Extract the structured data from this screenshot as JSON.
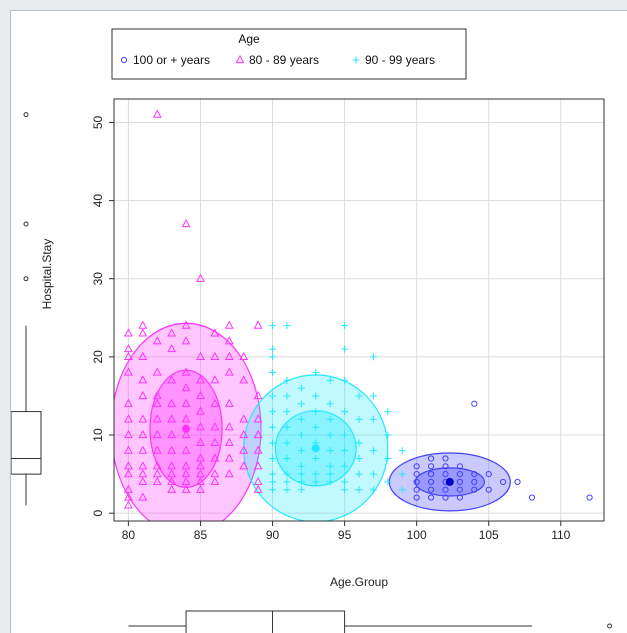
{
  "chart_data": {
    "type": "scatter",
    "xlabel": "Age.Group",
    "ylabel": "Hospital.Stay",
    "xlim": [
      79,
      113
    ],
    "ylim": [
      -1,
      53
    ],
    "x_ticks": [
      80,
      85,
      90,
      95,
      100,
      105,
      110
    ],
    "y_ticks": [
      0,
      10,
      20,
      30,
      40,
      50
    ],
    "grid": true,
    "legend": {
      "title": "Age",
      "position": "top",
      "entries": [
        {
          "label": "100 or + years",
          "symbol": "circle",
          "color": "#4040ff"
        },
        {
          "label": "80 - 89 years",
          "symbol": "triangle",
          "color": "#ff33ff"
        },
        {
          "label": "90 - 99 years",
          "symbol": "plus",
          "color": "#22e8ff"
        }
      ]
    },
    "series": [
      {
        "name": "80 - 89 years",
        "symbol": "triangle",
        "color": "#ff33ff",
        "centroid": [
          84,
          10.8
        ],
        "ellipse_inner": {
          "rx": 2.5,
          "ry": 7.5
        },
        "ellipse_outer": {
          "rx": 5.2,
          "ry": 13.5
        },
        "points": [
          [
            82,
            51
          ],
          [
            84,
            37
          ],
          [
            85,
            30
          ],
          [
            81,
            24
          ],
          [
            82,
            22
          ],
          [
            83,
            23
          ],
          [
            84,
            22
          ],
          [
            84,
            24
          ],
          [
            85,
            20
          ],
          [
            86,
            23
          ],
          [
            87,
            24
          ],
          [
            87,
            20
          ],
          [
            80,
            23
          ],
          [
            80,
            21
          ],
          [
            80,
            20
          ],
          [
            80,
            18
          ],
          [
            80,
            14
          ],
          [
            80,
            12
          ],
          [
            80,
            10
          ],
          [
            80,
            8
          ],
          [
            80,
            6
          ],
          [
            80,
            5
          ],
          [
            80,
            3
          ],
          [
            80,
            2
          ],
          [
            80,
            1
          ],
          [
            81,
            23
          ],
          [
            81,
            20
          ],
          [
            81,
            17
          ],
          [
            81,
            15
          ],
          [
            81,
            12
          ],
          [
            81,
            10
          ],
          [
            81,
            8
          ],
          [
            81,
            6
          ],
          [
            81,
            5
          ],
          [
            81,
            4
          ],
          [
            81,
            2
          ],
          [
            82,
            18
          ],
          [
            82,
            15
          ],
          [
            82,
            14
          ],
          [
            82,
            12
          ],
          [
            82,
            10
          ],
          [
            82,
            8
          ],
          [
            82,
            6
          ],
          [
            82,
            5
          ],
          [
            82,
            4
          ],
          [
            83,
            21
          ],
          [
            83,
            17
          ],
          [
            83,
            14
          ],
          [
            83,
            12
          ],
          [
            83,
            10
          ],
          [
            83,
            8
          ],
          [
            83,
            6
          ],
          [
            83,
            5
          ],
          [
            83,
            4
          ],
          [
            83,
            3
          ],
          [
            84,
            18
          ],
          [
            84,
            16
          ],
          [
            84,
            14
          ],
          [
            84,
            12
          ],
          [
            84,
            10
          ],
          [
            84,
            8
          ],
          [
            84,
            6
          ],
          [
            84,
            5
          ],
          [
            84,
            4
          ],
          [
            84,
            3
          ],
          [
            85,
            17
          ],
          [
            85,
            15
          ],
          [
            85,
            13
          ],
          [
            85,
            11
          ],
          [
            85,
            9
          ],
          [
            85,
            7
          ],
          [
            85,
            6
          ],
          [
            85,
            5
          ],
          [
            85,
            4
          ],
          [
            85,
            3
          ],
          [
            86,
            20
          ],
          [
            86,
            17
          ],
          [
            86,
            14
          ],
          [
            86,
            11
          ],
          [
            86,
            9
          ],
          [
            86,
            7
          ],
          [
            86,
            5
          ],
          [
            86,
            4
          ],
          [
            87,
            22
          ],
          [
            87,
            18
          ],
          [
            87,
            14
          ],
          [
            87,
            11
          ],
          [
            87,
            9
          ],
          [
            87,
            7
          ],
          [
            87,
            5
          ],
          [
            88,
            20
          ],
          [
            88,
            17
          ],
          [
            88,
            12
          ],
          [
            88,
            10
          ],
          [
            88,
            8
          ],
          [
            88,
            6
          ],
          [
            89,
            24
          ],
          [
            89,
            15
          ],
          [
            89,
            12
          ],
          [
            89,
            10
          ],
          [
            89,
            8
          ],
          [
            89,
            6
          ],
          [
            89,
            4
          ],
          [
            89,
            3
          ]
        ]
      },
      {
        "name": "90 - 99 years",
        "symbol": "plus",
        "color": "#22e8ff",
        "centroid": [
          93,
          8.3
        ],
        "ellipse_inner": {
          "rx": 2.8,
          "ry": 4.8
        },
        "ellipse_outer": {
          "rx": 5.0,
          "ry": 9.4
        },
        "points": [
          [
            90,
            24
          ],
          [
            91,
            24
          ],
          [
            90,
            21
          ],
          [
            90,
            20
          ],
          [
            90,
            18
          ],
          [
            90,
            15
          ],
          [
            90,
            13
          ],
          [
            90,
            11
          ],
          [
            90,
            9
          ],
          [
            90,
            7
          ],
          [
            90,
            5
          ],
          [
            90,
            4
          ],
          [
            90,
            3
          ],
          [
            91,
            17
          ],
          [
            91,
            15
          ],
          [
            91,
            13
          ],
          [
            91,
            11
          ],
          [
            91,
            9
          ],
          [
            91,
            7
          ],
          [
            91,
            5
          ],
          [
            91,
            4
          ],
          [
            91,
            3
          ],
          [
            92,
            16
          ],
          [
            92,
            14
          ],
          [
            92,
            12
          ],
          [
            92,
            10
          ],
          [
            92,
            8
          ],
          [
            92,
            6
          ],
          [
            92,
            5
          ],
          [
            92,
            4
          ],
          [
            92,
            3
          ],
          [
            93,
            18
          ],
          [
            93,
            15
          ],
          [
            93,
            13
          ],
          [
            93,
            11
          ],
          [
            93,
            9
          ],
          [
            93,
            7
          ],
          [
            93,
            5
          ],
          [
            93,
            4
          ],
          [
            94,
            17
          ],
          [
            94,
            14
          ],
          [
            94,
            12
          ],
          [
            94,
            10
          ],
          [
            94,
            8
          ],
          [
            94,
            6
          ],
          [
            94,
            5
          ],
          [
            94,
            4
          ],
          [
            95,
            24
          ],
          [
            95,
            21
          ],
          [
            95,
            17
          ],
          [
            95,
            13
          ],
          [
            95,
            10
          ],
          [
            95,
            8
          ],
          [
            95,
            6
          ],
          [
            95,
            4
          ],
          [
            95,
            3
          ],
          [
            96,
            15
          ],
          [
            96,
            12
          ],
          [
            96,
            9
          ],
          [
            96,
            7
          ],
          [
            96,
            5
          ],
          [
            96,
            3
          ],
          [
            97,
            20
          ],
          [
            97,
            15
          ],
          [
            97,
            12
          ],
          [
            97,
            8
          ],
          [
            97,
            5
          ],
          [
            97,
            3
          ],
          [
            98,
            13
          ],
          [
            98,
            10
          ],
          [
            98,
            7
          ],
          [
            98,
            4
          ],
          [
            99,
            8
          ],
          [
            99,
            5
          ],
          [
            99,
            3
          ]
        ]
      },
      {
        "name": "100 or + years",
        "symbol": "circle",
        "color": "#4040ff",
        "centroid": [
          102.3,
          4
        ],
        "ellipse_inner": {
          "rx": 2.4,
          "ry": 1.8
        },
        "ellipse_outer": {
          "rx": 4.2,
          "ry": 3.7
        },
        "points": [
          [
            104,
            14
          ],
          [
            100,
            6
          ],
          [
            100,
            5
          ],
          [
            100,
            4
          ],
          [
            100,
            3
          ],
          [
            100,
            2
          ],
          [
            101,
            7
          ],
          [
            101,
            6
          ],
          [
            101,
            5
          ],
          [
            101,
            4
          ],
          [
            101,
            3
          ],
          [
            101,
            2
          ],
          [
            102,
            7
          ],
          [
            102,
            6
          ],
          [
            102,
            5
          ],
          [
            102,
            4
          ],
          [
            102,
            3
          ],
          [
            102,
            2
          ],
          [
            103,
            6
          ],
          [
            103,
            5
          ],
          [
            103,
            4
          ],
          [
            103,
            3
          ],
          [
            103,
            2
          ],
          [
            104,
            5
          ],
          [
            104,
            4
          ],
          [
            104,
            3
          ],
          [
            105,
            5
          ],
          [
            105,
            3
          ],
          [
            106,
            4
          ],
          [
            107,
            4
          ],
          [
            108,
            2
          ],
          [
            112,
            2
          ]
        ]
      }
    ],
    "marginal_boxplot_y": {
      "min": 1,
      "q1": 5,
      "median": 7,
      "q3": 13,
      "whisker_max": 24,
      "outliers": [
        30,
        37,
        51
      ]
    },
    "marginal_boxplot_x": {
      "min": 80,
      "q1": 84,
      "median": 90,
      "q3": 95,
      "whisker_max": 108,
      "outliers": [
        112
      ]
    }
  }
}
